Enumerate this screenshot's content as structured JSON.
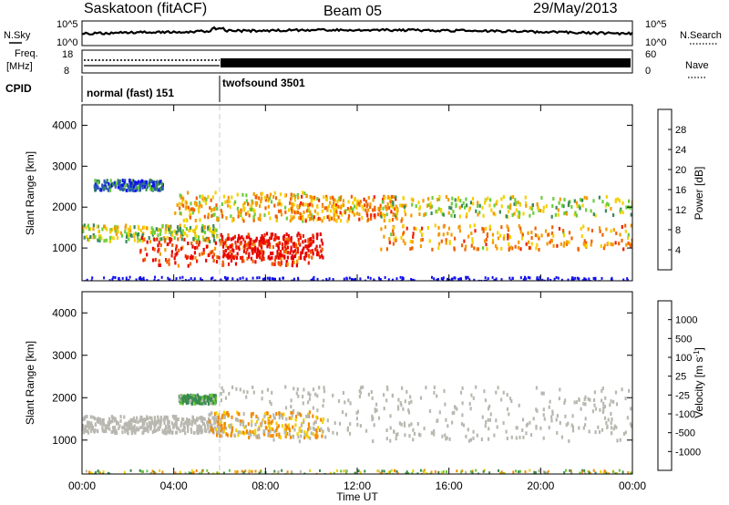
{
  "header": {
    "station": "Saskatoon (fitACF)",
    "beam": "Beam 05",
    "date": "29/May/2013"
  },
  "strip": {
    "nsky_label": "N.Sky",
    "nsky_ticks": [
      "10^5",
      "10^0"
    ],
    "nsearch_label": "N.Search",
    "nsearch_ticks": [
      "10^5",
      "10^0"
    ],
    "freq_label_1": "Freq.",
    "freq_label_2": "[MHz]",
    "freq_ticks": [
      "18",
      "8"
    ],
    "nave_label": "Nave",
    "nave_ticks": [
      "60",
      "0"
    ],
    "cpid_label": "CPID"
  },
  "cpid_segments": [
    {
      "label": "normal (fast) 151",
      "start_hour": 0,
      "end_hour": 6
    },
    {
      "label": "twofsound 3501",
      "start_hour": 6,
      "end_hour": 24
    }
  ],
  "colors": {
    "power_scale": [
      "#1010f0",
      "#2a5ab8",
      "#3a8a5a",
      "#6acd3a",
      "#f5d000",
      "#f59a00",
      "#f06000",
      "#f02000",
      "#e60000"
    ],
    "velocity_scale": [
      "#1a2cd8",
      "#2a60b0",
      "#3a8a50",
      "#6ac83a",
      "#c4c4bc",
      "#f2d000",
      "#f28a00",
      "#f04000",
      "#e60000"
    ],
    "ground_scatter": "#b8b8b0"
  },
  "chart_data": [
    {
      "type": "heatmap",
      "panel": "power",
      "xlabel": "Time UT",
      "ylabel": "Slant Range [km]",
      "x_range_hours": [
        0,
        24
      ],
      "x_tick_labels": [
        "00:00",
        "04:00",
        "08:00",
        "12:00",
        "16:00",
        "20:00",
        "00:00"
      ],
      "ylim": [
        200,
        4500
      ],
      "y_tick_labels": [
        "1000",
        "2000",
        "3000",
        "4000"
      ],
      "colorbar": {
        "label": "Power [dB]",
        "range": [
          0,
          32
        ],
        "tick_labels": [
          "4",
          "8",
          "12",
          "16",
          "20",
          "24",
          "28"
        ]
      },
      "features_approx": [
        {
          "hours": [
            0,
            6
          ],
          "range_km": [
            1200,
            1600
          ],
          "power_db": 14
        },
        {
          "hours": [
            0.5,
            3.5
          ],
          "range_km": [
            2450,
            2700
          ],
          "power_db": 6
        },
        {
          "hours": [
            2.5,
            10
          ],
          "range_km": [
            600,
            1300
          ],
          "power_db": 26
        },
        {
          "hours": [
            4,
            10
          ],
          "range_km": [
            1700,
            2400
          ],
          "power_db": 18
        },
        {
          "hours": [
            6,
            10.5
          ],
          "range_km": [
            800,
            1400
          ],
          "power_db": 30
        },
        {
          "hours": [
            9,
            14
          ],
          "range_km": [
            1700,
            2300
          ],
          "power_db": 20
        },
        {
          "hours": [
            13,
            24
          ],
          "range_km": [
            1000,
            1600
          ],
          "power_db": 20
        },
        {
          "hours": [
            13,
            24
          ],
          "range_km": [
            1800,
            2300
          ],
          "power_db": 14
        }
      ]
    },
    {
      "type": "heatmap",
      "panel": "velocity",
      "xlabel": "Time UT",
      "ylabel": "Slant Range [km]",
      "x_range_hours": [
        0,
        24
      ],
      "x_tick_labels": [
        "00:00",
        "04:00",
        "08:00",
        "12:00",
        "16:00",
        "20:00",
        "00:00"
      ],
      "ylim": [
        200,
        4500
      ],
      "y_tick_labels": [
        "1000",
        "2000",
        "3000",
        "4000"
      ],
      "colorbar": {
        "label": "Velocity [m s^-1]",
        "tick_labels": [
          "1000",
          "500",
          "100",
          "25",
          "-25",
          "-100",
          "-500",
          "-1000"
        ]
      },
      "features_approx": [
        {
          "hours": [
            0,
            6
          ],
          "range_km": [
            1200,
            1600
          ],
          "velocity": 0
        },
        {
          "hours": [
            4.2,
            5.8
          ],
          "range_km": [
            1900,
            2100
          ],
          "velocity": 120
        },
        {
          "hours": [
            5.5,
            10.5
          ],
          "range_km": [
            1100,
            1700
          ],
          "velocity": -120
        },
        {
          "hours": [
            6,
            24
          ],
          "range_km": [
            1000,
            2300
          ],
          "velocity": 0
        }
      ]
    }
  ]
}
